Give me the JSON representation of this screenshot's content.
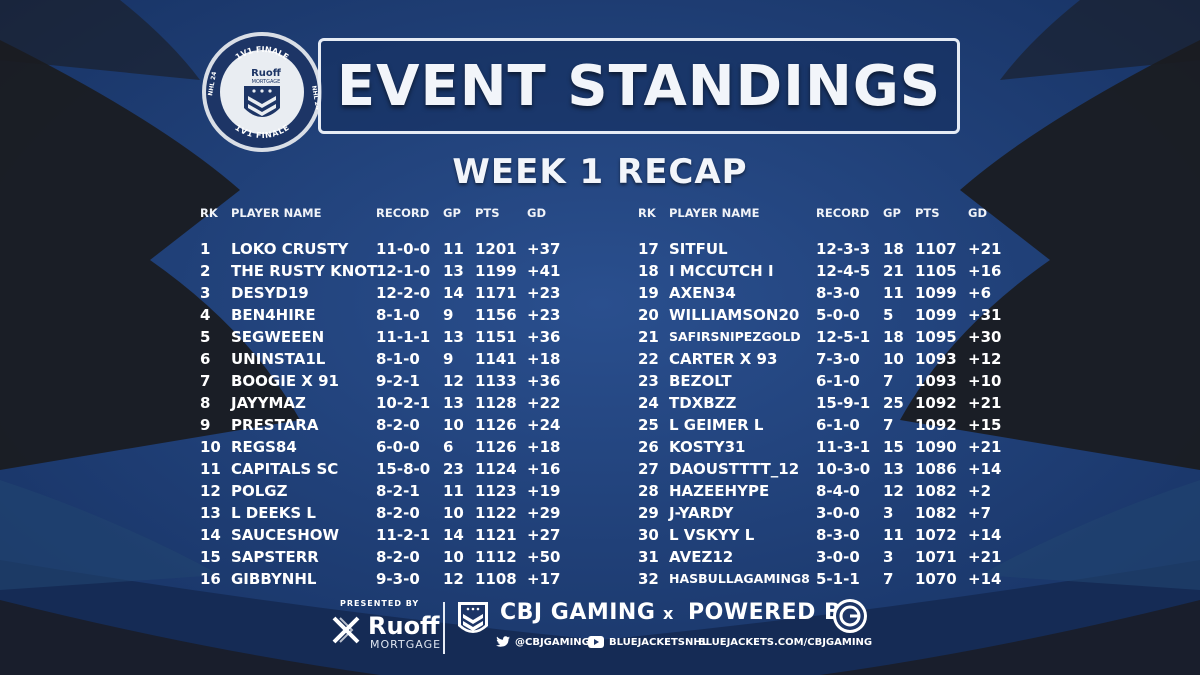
{
  "emblem": {
    "brand": "Ruoff",
    "brand_sub": "MORTGAGE",
    "ring_top": "1V1 FINALE",
    "ring_bottom": "1V1 FINALE",
    "ring_left": "NHL 24",
    "ring_right": "NHL 24"
  },
  "title": "EVENT STANDINGS",
  "subtitle": "WEEK 1 RECAP",
  "columns": {
    "rk": "RK",
    "player": "PLAYER NAME",
    "record": "RECORD",
    "gp": "GP",
    "pts": "PTS",
    "gd": "GD"
  },
  "standings_left": [
    {
      "rk": "1",
      "name": "LOKO CRUSTY",
      "record": "11-0-0",
      "gp": "11",
      "pts": "1201",
      "gd": "+37"
    },
    {
      "rk": "2",
      "name": "THE RUSTY KNOT",
      "record": "12-1-0",
      "gp": "13",
      "pts": "1199",
      "gd": "+41"
    },
    {
      "rk": "3",
      "name": "DESYD19",
      "record": "12-2-0",
      "gp": "14",
      "pts": "1171",
      "gd": "+23"
    },
    {
      "rk": "4",
      "name": "BEN4HIRE",
      "record": "8-1-0",
      "gp": "9",
      "pts": "1156",
      "gd": "+23"
    },
    {
      "rk": "5",
      "name": "SEGWEEEN",
      "record": "11-1-1",
      "gp": "13",
      "pts": "1151",
      "gd": "+36"
    },
    {
      "rk": "6",
      "name": "UNINSTA1L",
      "record": "8-1-0",
      "gp": "9",
      "pts": "1141",
      "gd": "+18"
    },
    {
      "rk": "7",
      "name": "BOOGIE X 91",
      "record": "9-2-1",
      "gp": "12",
      "pts": "1133",
      "gd": "+36"
    },
    {
      "rk": "8",
      "name": "JAYYMAZ",
      "record": "10-2-1",
      "gp": "13",
      "pts": "1128",
      "gd": "+22"
    },
    {
      "rk": "9",
      "name": "PRESTARA",
      "record": "8-2-0",
      "gp": "10",
      "pts": "1126",
      "gd": "+24"
    },
    {
      "rk": "10",
      "name": "REGS84",
      "record": "6-0-0",
      "gp": "6",
      "pts": "1126",
      "gd": "+18"
    },
    {
      "rk": "11",
      "name": "CAPITALS SC",
      "record": "15-8-0",
      "gp": "23",
      "pts": "1124",
      "gd": "+16"
    },
    {
      "rk": "12",
      "name": "POLGZ",
      "record": "8-2-1",
      "gp": "11",
      "pts": "1123",
      "gd": "+19"
    },
    {
      "rk": "13",
      "name": "L DEEKS L",
      "record": "8-2-0",
      "gp": "10",
      "pts": "1122",
      "gd": "+29"
    },
    {
      "rk": "14",
      "name": "SAUCESHOW",
      "record": "11-2-1",
      "gp": "14",
      "pts": "1121",
      "gd": "+27"
    },
    {
      "rk": "15",
      "name": "SAPSTERR",
      "record": "8-2-0",
      "gp": "10",
      "pts": "1112",
      "gd": "+50"
    },
    {
      "rk": "16",
      "name": "GIBBYNHL",
      "record": "9-3-0",
      "gp": "12",
      "pts": "1108",
      "gd": "+17"
    }
  ],
  "standings_right": [
    {
      "rk": "17",
      "name": "SITFUL",
      "record": "12-3-3",
      "gp": "18",
      "pts": "1107",
      "gd": "+21"
    },
    {
      "rk": "18",
      "name": "I MCCUTCH I",
      "record": "12-4-5",
      "gp": "21",
      "pts": "1105",
      "gd": "+16"
    },
    {
      "rk": "19",
      "name": "AXEN34",
      "record": "8-3-0",
      "gp": "11",
      "pts": "1099",
      "gd": "+6"
    },
    {
      "rk": "20",
      "name": "WILLIAMSON20",
      "record": "5-0-0",
      "gp": "5",
      "pts": "1099",
      "gd": "+31"
    },
    {
      "rk": "21",
      "name": "SAFIRSNIPEZGOLD",
      "record": "12-5-1",
      "gp": "18",
      "pts": "1095",
      "gd": "+30"
    },
    {
      "rk": "22",
      "name": "CARTER X 93",
      "record": "7-3-0",
      "gp": "10",
      "pts": "1093",
      "gd": "+12"
    },
    {
      "rk": "23",
      "name": "BEZOLT",
      "record": "6-1-0",
      "gp": "7",
      "pts": "1093",
      "gd": "+10"
    },
    {
      "rk": "24",
      "name": "TDXBZZ",
      "record": "15-9-1",
      "gp": "25",
      "pts": "1092",
      "gd": "+21"
    },
    {
      "rk": "25",
      "name": "L GEIMER L",
      "record": "6-1-0",
      "gp": "7",
      "pts": "1092",
      "gd": "+15"
    },
    {
      "rk": "26",
      "name": "KOSTY31",
      "record": "11-3-1",
      "gp": "15",
      "pts": "1090",
      "gd": "+21"
    },
    {
      "rk": "27",
      "name": "DAOUSTTTT_12",
      "record": "10-3-0",
      "gp": "13",
      "pts": "1086",
      "gd": "+14"
    },
    {
      "rk": "28",
      "name": "HAZEEHYPE",
      "record": "8-4-0",
      "gp": "12",
      "pts": "1082",
      "gd": "+2"
    },
    {
      "rk": "29",
      "name": "J-YARDY",
      "record": "3-0-0",
      "gp": "3",
      "pts": "1082",
      "gd": "+7"
    },
    {
      "rk": "30",
      "name": "L VSKYY L",
      "record": "8-3-0",
      "gp": "11",
      "pts": "1072",
      "gd": "+14"
    },
    {
      "rk": "31",
      "name": "AVEZ12",
      "record": "3-0-0",
      "gp": "3",
      "pts": "1071",
      "gd": "+21"
    },
    {
      "rk": "32",
      "name": "HASBULLAGAMING8",
      "record": "5-1-1",
      "gp": "7",
      "pts": "1070",
      "gd": "+14"
    }
  ],
  "small_names": [
    "SAFIRSNIPEZGOLD",
    "HASBULLAGAMING8"
  ],
  "footer": {
    "presented_by": "PRESENTED BY",
    "sponsor": "Ruoff",
    "sponsor_sub": "MORTGAGE",
    "cbj": "CBJ GAMING",
    "x": "x",
    "powered_by": "POWERED BY",
    "twitter": "@CBJGAMING",
    "youtube": "BLUEJACKETSNHL",
    "website": "BLUEJACKETS.COM/CBJGAMING"
  },
  "colors": {
    "background": "#1c3a6e",
    "dark_band": "#181a1f",
    "text": "#ffffff"
  },
  "icons": [
    "ruoff-emblem-icon",
    "chevron-shield-icon",
    "twitter-icon",
    "youtube-icon",
    "powered-by-logo-icon"
  ]
}
